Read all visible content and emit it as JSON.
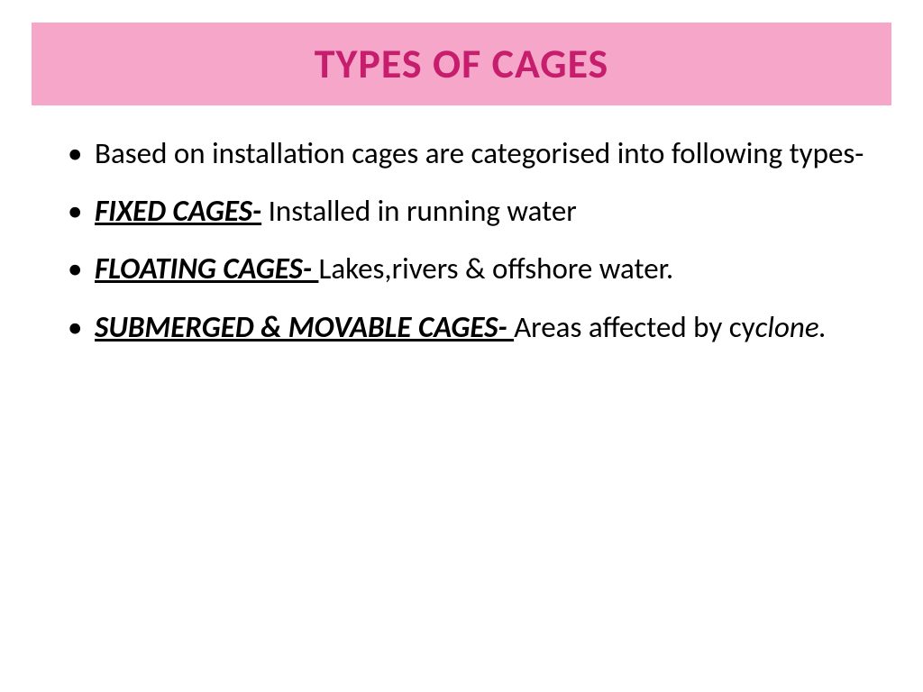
{
  "title": {
    "text": "TYPES OF CAGES",
    "background_color": "#f5a6c9",
    "text_color": "#c71d6d",
    "font_size": 46,
    "font_weight": "bold"
  },
  "bullets": [
    {
      "intro": "Based on  installation cages are categorised into following types-"
    },
    {
      "term": "FIXED CAGES-",
      "desc": "   Installed in running water"
    },
    {
      "term": "FLOATING CAGES-   ",
      "desc": "Lakes,rivers & offshore water."
    },
    {
      "term": "SUBMERGED & MOVABLE CAGES-   ",
      "desc_pre": " Areas affected by cy",
      "desc_italic": "clone."
    }
  ],
  "body": {
    "font_size": 33,
    "text_color": "#000000",
    "background_color": "#ffffff"
  }
}
